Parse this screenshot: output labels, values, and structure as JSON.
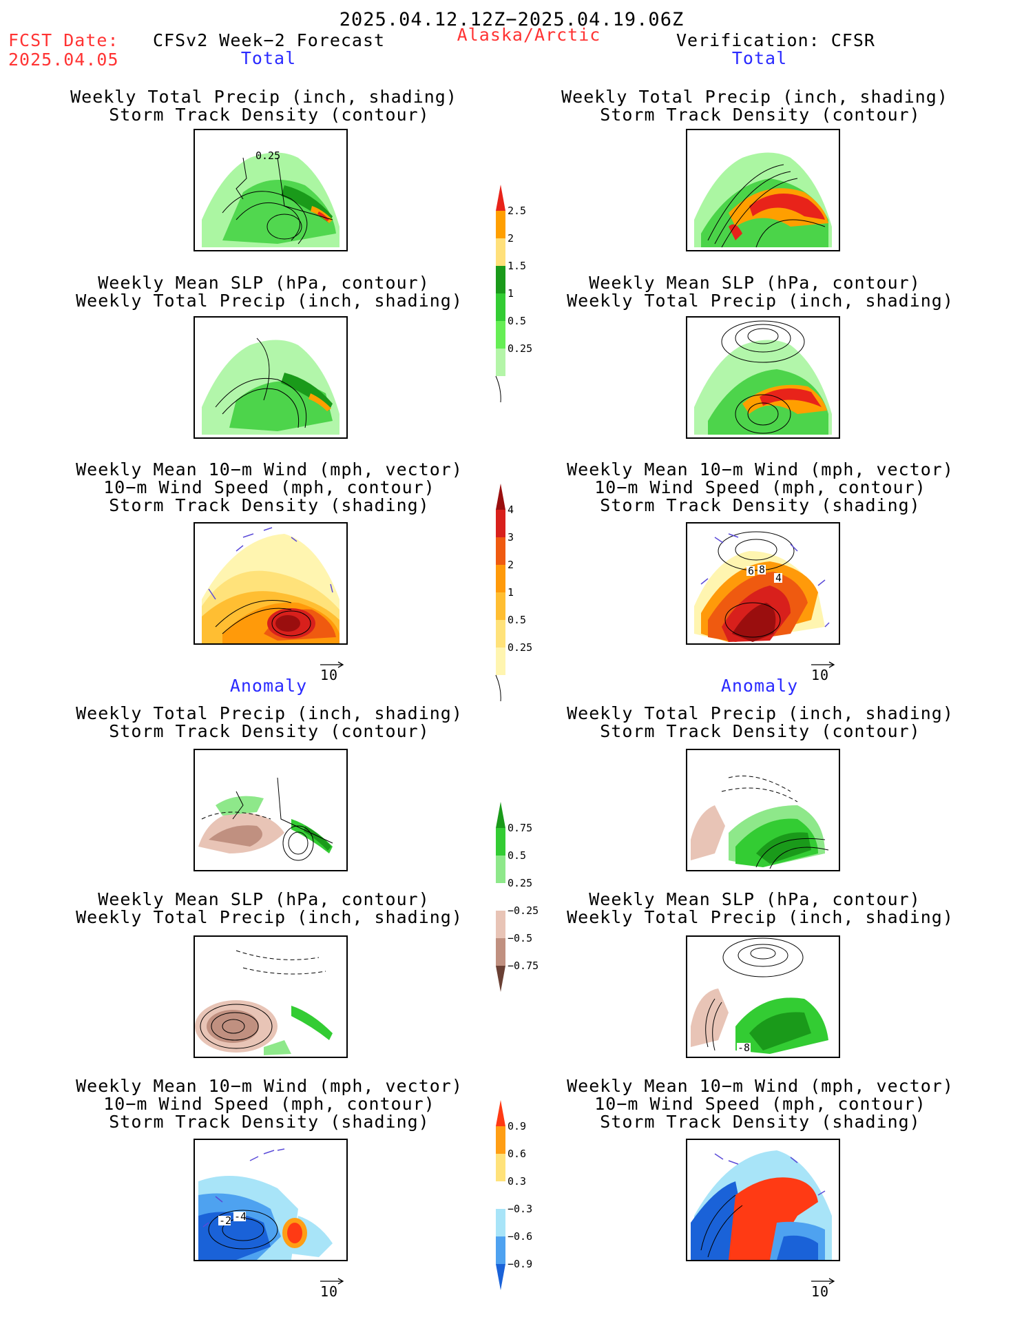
{
  "header": {
    "period": "2025.04.12.12Z−2025.04.19.06Z",
    "fcst_date_label": "FCST Date:",
    "fcst_date_value": "2025.04.05",
    "model_title": "CFSv2 Week−2 Forecast",
    "region": "Alaska/Arctic",
    "verification": "Verification: CFSR"
  },
  "sections": {
    "total": "Total",
    "anomaly": "Anomaly"
  },
  "panel_titles": {
    "precip_storm": [
      "Weekly Total Precip (inch, shading)",
      "Storm Track Density (contour)"
    ],
    "slp_precip": [
      "Weekly Mean SLP (hPa, contour)",
      "Weekly Total Precip (inch, shading)"
    ],
    "wind_storm": [
      "Weekly Mean 10−m Wind (mph, vector)",
      "10−m Wind Speed (mph, contour)",
      "Storm Track Density (shading)"
    ]
  },
  "vector_reference": "10",
  "colorbars": {
    "precip_total": {
      "labels": [
        "2.5",
        "2",
        "1.5",
        "1",
        "0.5",
        "0.25"
      ],
      "colors": [
        "#e8231a",
        "#ff9f00",
        "#ffe07a",
        "#1a9a1a",
        "#33cc33",
        "#66ee55",
        "#b4f5a8",
        "#ffffff"
      ]
    },
    "storm_total": {
      "labels": [
        "4",
        "3",
        "2",
        "1",
        "0.5",
        "0.25"
      ],
      "colors": [
        "#9a0e0e",
        "#d8201c",
        "#ef5a10",
        "#ff9a0a",
        "#ffbe32",
        "#ffe27a",
        "#fff5b0",
        "#ffffff"
      ]
    },
    "precip_anom": {
      "labels": [
        "0.75",
        "0.5",
        "0.25",
        "−0.25",
        "−0.5",
        "−0.75"
      ],
      "colors": [
        "#1a9a1a",
        "#33cc33",
        "#8ee88a",
        "#ffffff",
        "#e8c4b6",
        "#c09080",
        "#6a4034"
      ]
    },
    "storm_anom": {
      "labels": [
        "0.9",
        "0.6",
        "0.3",
        "−0.3",
        "−0.6",
        "−0.9"
      ],
      "colors": [
        "#ff3a14",
        "#ff9e14",
        "#ffe27a",
        "#ffffff",
        "#a8e4f8",
        "#4ea2f0",
        "#1a62d8"
      ]
    }
  },
  "contour_labels": {
    "fcst_total_precip": "0.25",
    "obs_total_wind": [
      "6",
      "8",
      "4"
    ],
    "obs_anom_slp": "-8",
    "fcst_anom_wind": [
      "-2",
      "-4"
    ]
  }
}
